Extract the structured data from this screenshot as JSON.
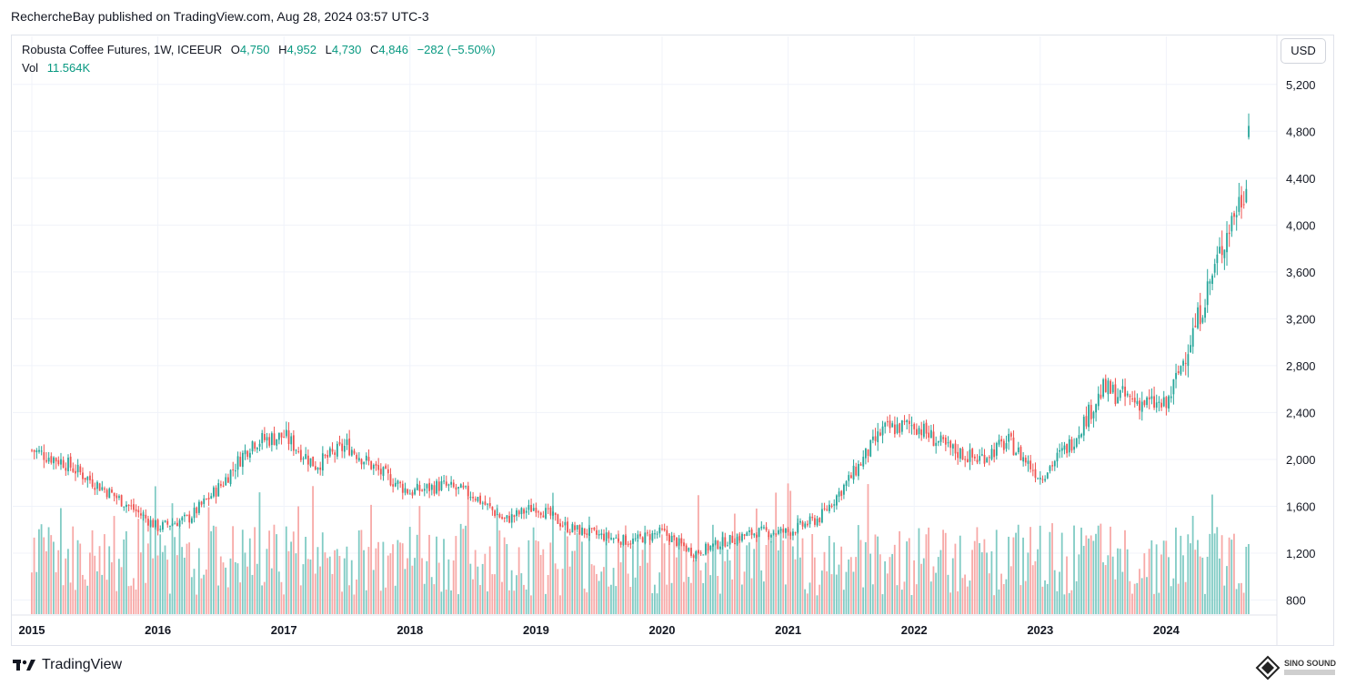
{
  "header": {
    "text": "RechercheBay published on TradingView.com, Aug 28, 2024 03:57 UTC-3"
  },
  "legend": {
    "symbol": "Robusta Coffee Futures, 1W, ICEEUR",
    "o_label": "O",
    "o_value": "4,750",
    "h_label": "H",
    "h_value": "4,952",
    "l_label": "L",
    "l_value": "4,730",
    "c_label": "C",
    "c_value": "4,846",
    "change": "−282 (−5.50%)",
    "vol_label": "Vol",
    "vol_value": "11.564K"
  },
  "currency_button": "USD",
  "footer": {
    "brand": "TradingView"
  },
  "watermark": {
    "text": "SINO SOUND"
  },
  "colors": {
    "up": "#26a69a",
    "down": "#ef5350",
    "up_vol": "#80cbc4",
    "down_vol": "#f7a9a7",
    "grid": "#f0f3fa",
    "text": "#131722"
  },
  "chart_data": {
    "type": "candlestick",
    "title": "Robusta Coffee Futures, 1W, ICEEUR",
    "y_ticks": [
      800,
      1200,
      1600,
      2000,
      2400,
      2800,
      3200,
      3600,
      4000,
      4400,
      4800,
      5200
    ],
    "y_tick_labels": [
      "800",
      "1,200",
      "1,600",
      "2,000",
      "2,400",
      "2,800",
      "3,200",
      "3,600",
      "4,000",
      "4,400",
      "4,800",
      "5,200"
    ],
    "x_ticks": [
      "2015",
      "2016",
      "2017",
      "2018",
      "2019",
      "2020",
      "2021",
      "2022",
      "2023",
      "2024"
    ],
    "ylim": [
      700,
      5300
    ],
    "xlim": [
      2015.0,
      2025.0
    ],
    "grid": true,
    "close_anchors": [
      {
        "t": 2015.0,
        "v": 2080
      },
      {
        "t": 2015.25,
        "v": 1980
      },
      {
        "t": 2015.5,
        "v": 1800
      },
      {
        "t": 2015.75,
        "v": 1620
      },
      {
        "t": 2016.0,
        "v": 1420
      },
      {
        "t": 2016.25,
        "v": 1500
      },
      {
        "t": 2016.5,
        "v": 1780
      },
      {
        "t": 2016.75,
        "v": 2150
      },
      {
        "t": 2017.0,
        "v": 2200
      },
      {
        "t": 2017.25,
        "v": 1950
      },
      {
        "t": 2017.5,
        "v": 2120
      },
      {
        "t": 2017.75,
        "v": 1900
      },
      {
        "t": 2018.0,
        "v": 1720
      },
      {
        "t": 2018.25,
        "v": 1780
      },
      {
        "t": 2018.5,
        "v": 1700
      },
      {
        "t": 2018.75,
        "v": 1480
      },
      {
        "t": 2019.0,
        "v": 1600
      },
      {
        "t": 2019.25,
        "v": 1420
      },
      {
        "t": 2019.5,
        "v": 1350
      },
      {
        "t": 2019.75,
        "v": 1300
      },
      {
        "t": 2020.0,
        "v": 1380
      },
      {
        "t": 2020.25,
        "v": 1200
      },
      {
        "t": 2020.5,
        "v": 1300
      },
      {
        "t": 2020.75,
        "v": 1380
      },
      {
        "t": 2021.0,
        "v": 1380
      },
      {
        "t": 2021.25,
        "v": 1500
      },
      {
        "t": 2021.5,
        "v": 1850
      },
      {
        "t": 2021.75,
        "v": 2250
      },
      {
        "t": 2022.0,
        "v": 2300
      },
      {
        "t": 2022.25,
        "v": 2100
      },
      {
        "t": 2022.5,
        "v": 2000
      },
      {
        "t": 2022.75,
        "v": 2150
      },
      {
        "t": 2023.0,
        "v": 1850
      },
      {
        "t": 2023.25,
        "v": 2150
      },
      {
        "t": 2023.5,
        "v": 2600
      },
      {
        "t": 2023.75,
        "v": 2500
      },
      {
        "t": 2024.0,
        "v": 2450
      },
      {
        "t": 2024.25,
        "v": 3200
      },
      {
        "t": 2024.5,
        "v": 4000
      },
      {
        "t": 2024.62,
        "v": 4300
      },
      {
        "t": 2024.67,
        "v": 4846
      }
    ],
    "volume_range": [
      0,
      20000
    ]
  }
}
